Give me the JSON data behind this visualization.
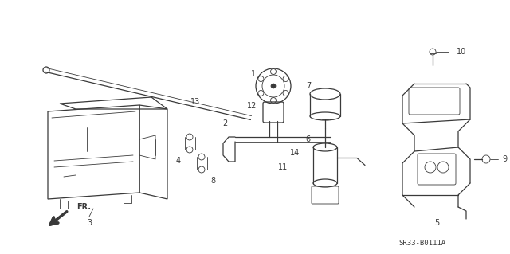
{
  "bg_color": "#ffffff",
  "line_color": "#3a3a3a",
  "figsize": [
    6.4,
    3.19
  ],
  "dpi": 100,
  "part_code": "SR33-B0111A"
}
